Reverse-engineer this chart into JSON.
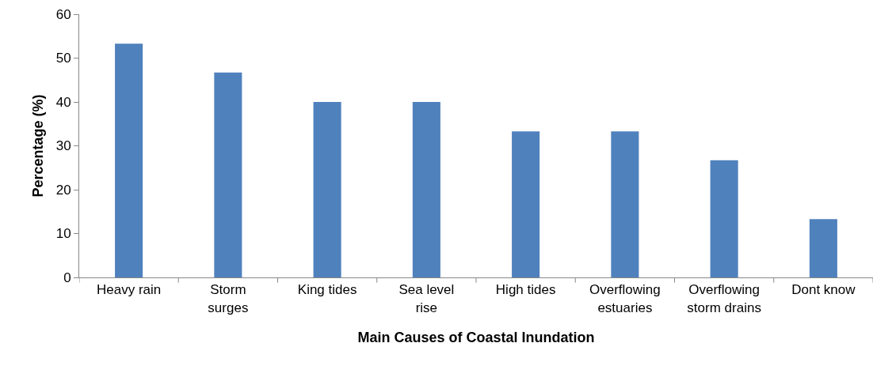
{
  "chart_data": {
    "type": "bar",
    "xlabel": "Main Causes of Coastal Inundation",
    "ylabel": "Percentage (%)",
    "categories": [
      "Heavy rain",
      "Storm surges",
      "King tides",
      "Sea level rise",
      "High tides",
      "Overflowing estuaries",
      "Overflowing storm drains",
      "Dont know"
    ],
    "values": [
      53.3,
      46.7,
      40,
      40,
      33.3,
      33.3,
      26.7,
      13.3
    ],
    "color": "#4f81bd",
    "ylim": [
      0,
      60
    ],
    "yticks": [
      0,
      10,
      20,
      30,
      40,
      50,
      60
    ],
    "grid": false,
    "legend": false
  }
}
